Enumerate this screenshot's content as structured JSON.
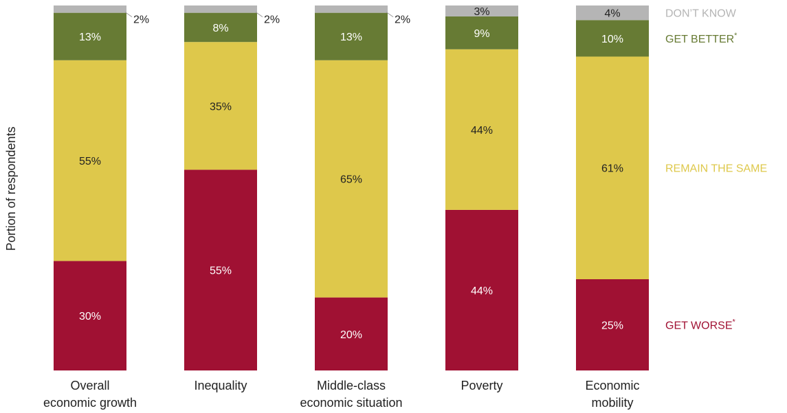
{
  "chart_data": {
    "type": "bar",
    "stacked": true,
    "ylabel": "Portion of respondents",
    "categories": [
      [
        "Overall",
        "economic growth"
      ],
      [
        "Inequality"
      ],
      [
        "Middle-class",
        "economic situation"
      ],
      [
        "Poverty"
      ],
      [
        "Economic",
        "mobility"
      ]
    ],
    "series": [
      {
        "name": "GET WORSE",
        "legend_marker": "*",
        "color": "#a01133",
        "values": [
          30,
          55,
          20,
          44,
          25
        ],
        "labels": [
          "30%",
          "55%",
          "20%",
          "44%",
          "25%"
        ]
      },
      {
        "name": "REMAIN THE SAME",
        "color": "#dec84b",
        "values": [
          55,
          35,
          65,
          44,
          61
        ],
        "labels": [
          "55%",
          "35%",
          "65%",
          "44%",
          "61%"
        ]
      },
      {
        "name": "GET BETTER",
        "legend_marker": "*",
        "color": "#677b34",
        "values": [
          13,
          8,
          13,
          9,
          10
        ],
        "labels": [
          "13%",
          "8%",
          "13%",
          "9%",
          "10%"
        ]
      },
      {
        "name": "DON’T KNOW",
        "color": "#b5b5b5",
        "values": [
          2,
          2,
          2,
          3,
          4
        ],
        "labels": [
          "2%",
          "2%",
          "2%",
          "3%",
          "4%"
        ]
      }
    ],
    "ylim": [
      0,
      100
    ],
    "grid": false,
    "legend": "right"
  }
}
